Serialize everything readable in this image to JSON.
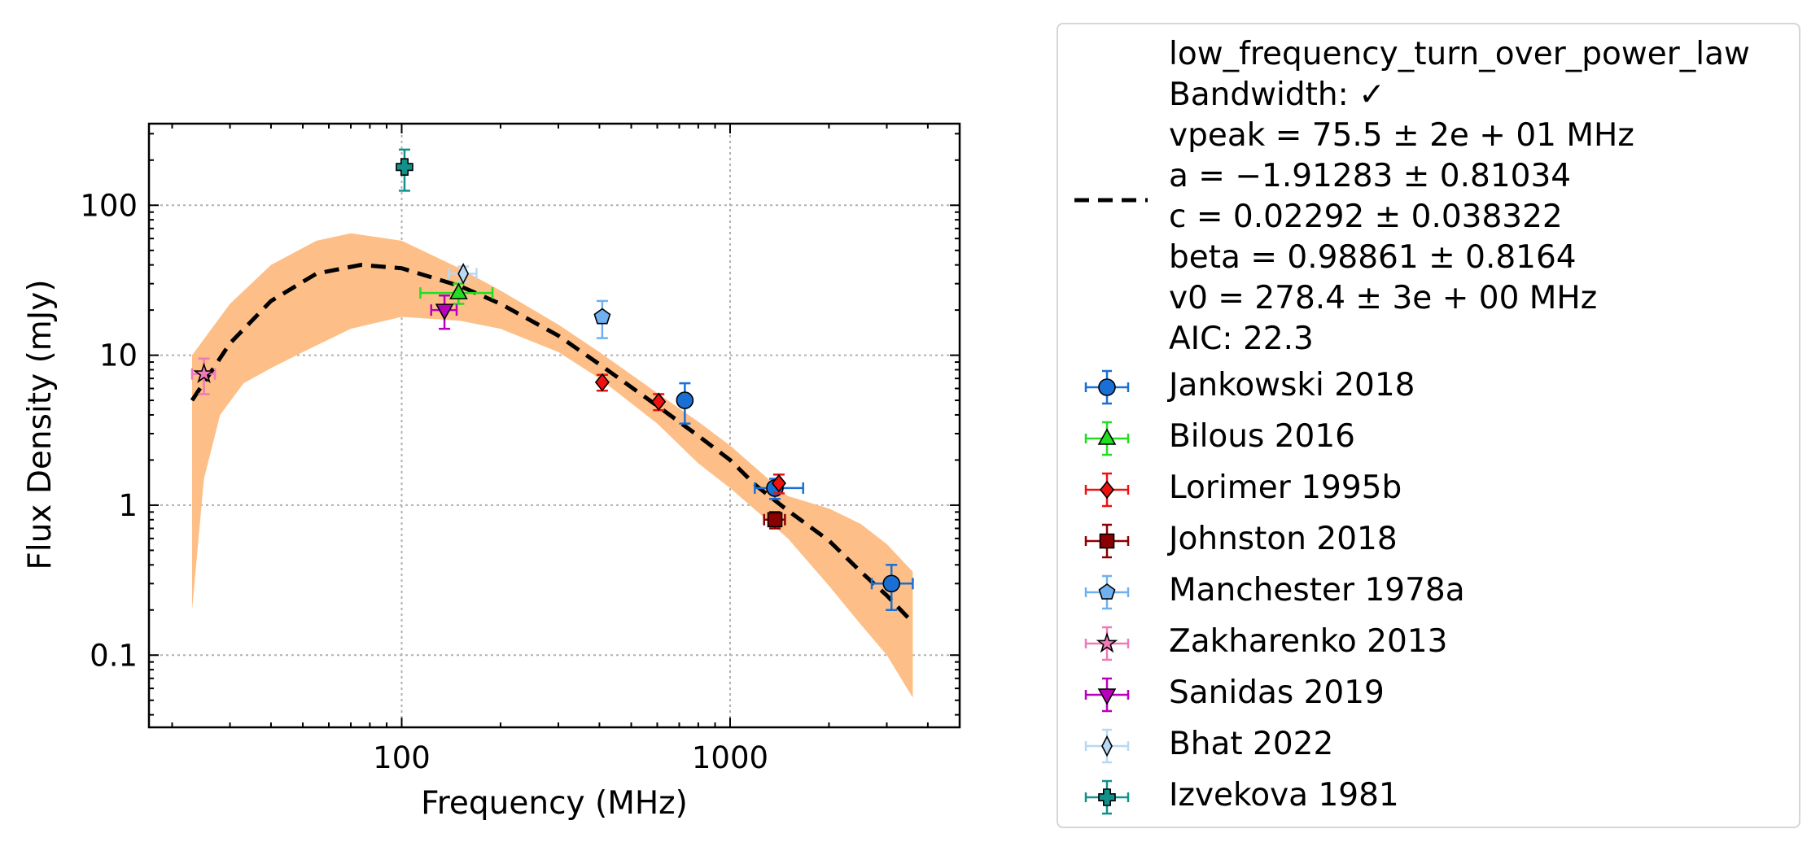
{
  "chart_data": {
    "type": "scatter",
    "xlabel": "Frequency (MHz)",
    "ylabel": "Flux Density (mJy)",
    "xscale": "log",
    "yscale": "log",
    "xlim": [
      17,
      5000
    ],
    "ylim": [
      0.033,
      350
    ],
    "x_ticks": [
      {
        "value": 100,
        "label": "100"
      },
      {
        "value": 1000,
        "label": "1000"
      }
    ],
    "y_ticks": [
      {
        "value": 0.1,
        "label": "0.1"
      },
      {
        "value": 1,
        "label": "1"
      },
      {
        "value": 10,
        "label": "10"
      },
      {
        "value": 100,
        "label": "100"
      }
    ],
    "grid": true,
    "legend_placement": "outside right",
    "fit": {
      "model": "low_frequency_turn_over_power_law",
      "color": "#000000",
      "style": "dashed",
      "band_color": "#fdbf87",
      "legend_lines": [
        "low_frequency_turn_over_power_law",
        "Bandwidth: ✓",
        "vpeak = 75.5 ± 2e + 01 MHz",
        "a = −1.91283 ± 0.81034",
        "c = 0.02292 ± 0.038322",
        "beta = 0.98861 ± 0.8164",
        "v0 = 278.4 ± 3e + 00 MHz",
        "AIC: 22.3"
      ],
      "curve": [
        [
          23,
          5.0
        ],
        [
          30,
          12
        ],
        [
          40,
          23
        ],
        [
          55,
          35
        ],
        [
          75,
          40
        ],
        [
          100,
          38
        ],
        [
          150,
          29
        ],
        [
          200,
          22
        ],
        [
          300,
          13.5
        ],
        [
          400,
          8.7
        ],
        [
          600,
          4.6
        ],
        [
          800,
          2.9
        ],
        [
          1000,
          2.0
        ],
        [
          1200,
          1.35
        ],
        [
          1500,
          0.92
        ],
        [
          2000,
          0.58
        ],
        [
          2500,
          0.36
        ],
        [
          3000,
          0.25
        ],
        [
          3600,
          0.165
        ]
      ],
      "band_upper": [
        [
          23,
          10
        ],
        [
          30,
          22
        ],
        [
          40,
          40
        ],
        [
          55,
          58
        ],
        [
          70,
          65
        ],
        [
          100,
          58
        ],
        [
          150,
          38
        ],
        [
          200,
          27
        ],
        [
          300,
          16
        ],
        [
          400,
          10.5
        ],
        [
          600,
          5.6
        ],
        [
          800,
          3.6
        ],
        [
          1000,
          2.5
        ],
        [
          1500,
          1.15
        ],
        [
          2000,
          0.95
        ],
        [
          2500,
          0.75
        ],
        [
          3000,
          0.55
        ],
        [
          3600,
          0.36
        ]
      ],
      "band_lower": [
        [
          3600,
          0.052
        ],
        [
          3000,
          0.1
        ],
        [
          2500,
          0.16
        ],
        [
          2000,
          0.29
        ],
        [
          1500,
          0.6
        ],
        [
          1200,
          0.92
        ],
        [
          1000,
          1.3
        ],
        [
          800,
          1.9
        ],
        [
          600,
          3.5
        ],
        [
          400,
          7.0
        ],
        [
          300,
          10.5
        ],
        [
          200,
          15
        ],
        [
          150,
          17
        ],
        [
          100,
          18
        ],
        [
          70,
          15
        ],
        [
          50,
          10.5
        ],
        [
          40,
          8.2
        ],
        [
          33,
          6.5
        ],
        [
          28,
          4.0
        ],
        [
          25,
          1.5
        ],
        [
          23,
          0.2
        ]
      ]
    },
    "series": [
      {
        "name": "Jankowski 2018",
        "marker": "circle",
        "color": "#1a6fd4",
        "points": [
          {
            "x": 728,
            "y": 5.0,
            "yerr": [
              1.5,
              1.5
            ]
          },
          {
            "x": 1369,
            "y": 1.3,
            "xerr": [
              180,
              300
            ],
            "yerr": [
              0.2,
              0.2
            ]
          },
          {
            "x": 3100,
            "y": 0.3,
            "xerr": [
              400,
              500
            ],
            "yerr": [
              0.1,
              0.1
            ]
          }
        ]
      },
      {
        "name": "Bilous 2016",
        "marker": "triangle-up",
        "color": "#22dd22",
        "points": [
          {
            "x": 149,
            "y": 26,
            "xerr": [
              35,
              40
            ],
            "yerr": [
              4,
              4
            ]
          }
        ]
      },
      {
        "name": "Lorimer 1995b",
        "marker": "diamond",
        "color": "#ee1111",
        "points": [
          {
            "x": 408,
            "y": 6.6,
            "yerr": [
              0.8,
              0.8
            ]
          },
          {
            "x": 606,
            "y": 4.9,
            "yerr": [
              0.6,
              0.6
            ]
          },
          {
            "x": 1408,
            "y": 1.4,
            "yerr": [
              0.2,
              0.2
            ]
          }
        ]
      },
      {
        "name": "Johnston 2018",
        "marker": "square",
        "color": "#8b0000",
        "points": [
          {
            "x": 1369,
            "y": 0.8,
            "xerr": [
              100,
              100
            ],
            "yerr": [
              0.1,
              0.1
            ]
          }
        ]
      },
      {
        "name": "Manchester 1978a",
        "marker": "pentagon",
        "color": "#6fb0f0",
        "points": [
          {
            "x": 408,
            "y": 18,
            "yerr": [
              5,
              5
            ]
          }
        ]
      },
      {
        "name": "Zakharenko 2013",
        "marker": "star",
        "color": "#f07ab8",
        "points": [
          {
            "x": 25,
            "y": 7.5,
            "xerr": [
              2,
              2
            ],
            "yerr": [
              2,
              2
            ]
          }
        ]
      },
      {
        "name": "Sanidas 2019",
        "marker": "triangle-down",
        "color": "#bb00bb",
        "points": [
          {
            "x": 135,
            "y": 20,
            "xerr": [
              12,
              12
            ],
            "yerr": [
              5,
              5
            ]
          }
        ]
      },
      {
        "name": "Bhat 2022",
        "marker": "thin-diamond",
        "color": "#b8d8f4",
        "points": [
          {
            "x": 154,
            "y": 35,
            "xerr": [
              15,
              15
            ],
            "yerr": [
              4,
              4
            ]
          }
        ]
      },
      {
        "name": "Izvekova 1981",
        "marker": "plus",
        "color": "#11918a",
        "points": [
          {
            "x": 102,
            "y": 180,
            "yerr": [
              55,
              55
            ]
          }
        ]
      }
    ]
  }
}
